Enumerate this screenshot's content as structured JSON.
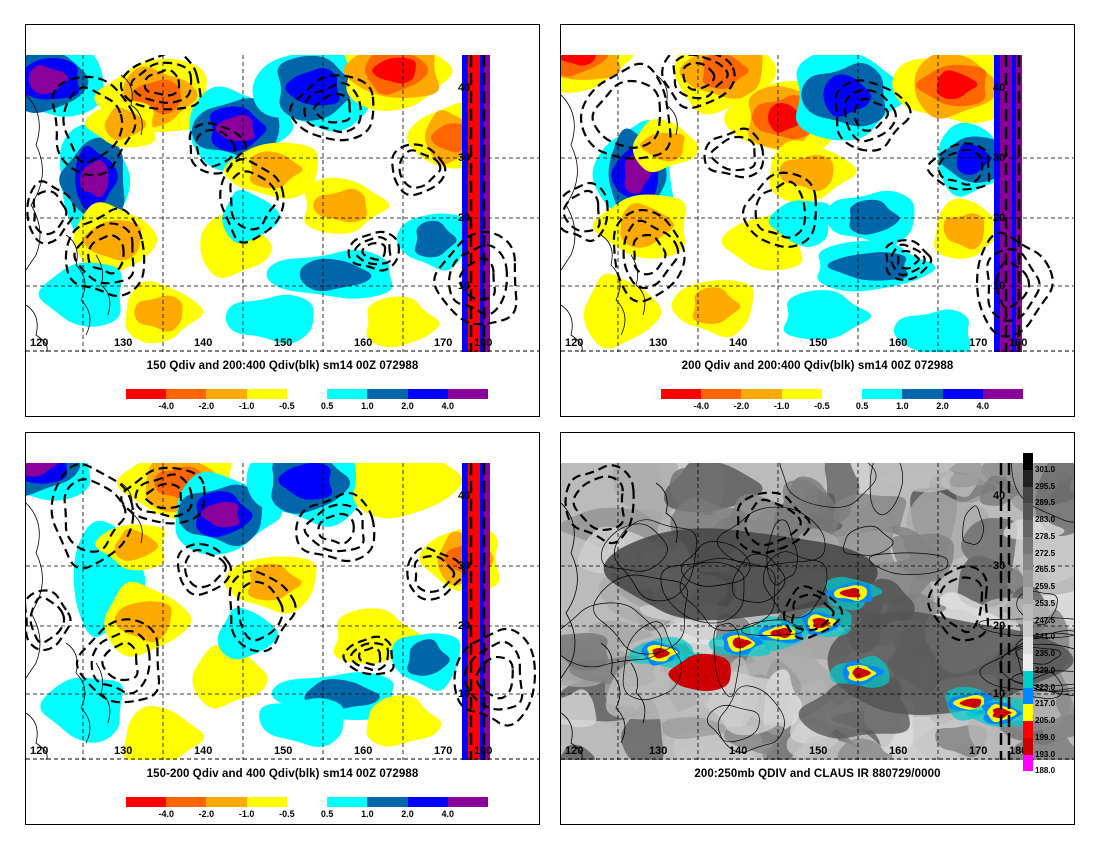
{
  "panels": [
    {
      "caption": "150 Qdiv and 200:400 Qdiv(blk) sm14 00Z 072988",
      "colorbar_labels": [
        "-4.0",
        "-2.0",
        "-1.0",
        "-0.5",
        "0.5",
        "1.0",
        "2.0",
        "4.0"
      ]
    },
    {
      "caption": "200 Qdiv and 200:400 Qdiv(blk) sm14 00Z 072988",
      "colorbar_labels": [
        "-4.0",
        "-2.0",
        "-1.0",
        "-0.5",
        "0.5",
        "1.0",
        "2.0",
        "4.0"
      ]
    },
    {
      "caption": "150-200 Qdiv and 400 Qdiv(blk) sm14 00Z 072988",
      "colorbar_labels": [
        "-4.0",
        "-2.0",
        "-1.0",
        "-0.5",
        "0.5",
        "1.0",
        "2.0",
        "4.0"
      ]
    },
    {
      "caption": "200:250mb QDIV and CLAUS IR 880729/0000",
      "ir_labels": [
        "301.0",
        "295.5",
        "289.5",
        "283.0",
        "278.5",
        "272.5",
        "265.5",
        "259.5",
        "253.5",
        "247.5",
        "241.0",
        "235.0",
        "229.0",
        "223.0",
        "217.0",
        "205.0",
        "199.0",
        "193.0",
        "188.0"
      ]
    }
  ],
  "axes": {
    "lon_labels": [
      "120",
      "130",
      "140",
      "150",
      "160",
      "170",
      "180"
    ],
    "lat_labels": [
      "40",
      "30",
      "20",
      "10"
    ]
  },
  "colors": {
    "qdiv_scale": [
      "#ff0000",
      "#ff6600",
      "#ffaa00",
      "#ffff00",
      "#ffffff",
      "#00ffff",
      "#0066aa",
      "#0000ff",
      "#880099"
    ],
    "ir_scale": [
      "#000000",
      "#222222",
      "#444444",
      "#555555",
      "#666666",
      "#777777",
      "#888888",
      "#999999",
      "#aaaaaa",
      "#bbbbbb",
      "#cccccc",
      "#dddddd",
      "#eeeeee",
      "#00cccc",
      "#0088ff",
      "#ffff00",
      "#ff0000",
      "#cc0000",
      "#ff00ff",
      "#ffffff"
    ]
  }
}
